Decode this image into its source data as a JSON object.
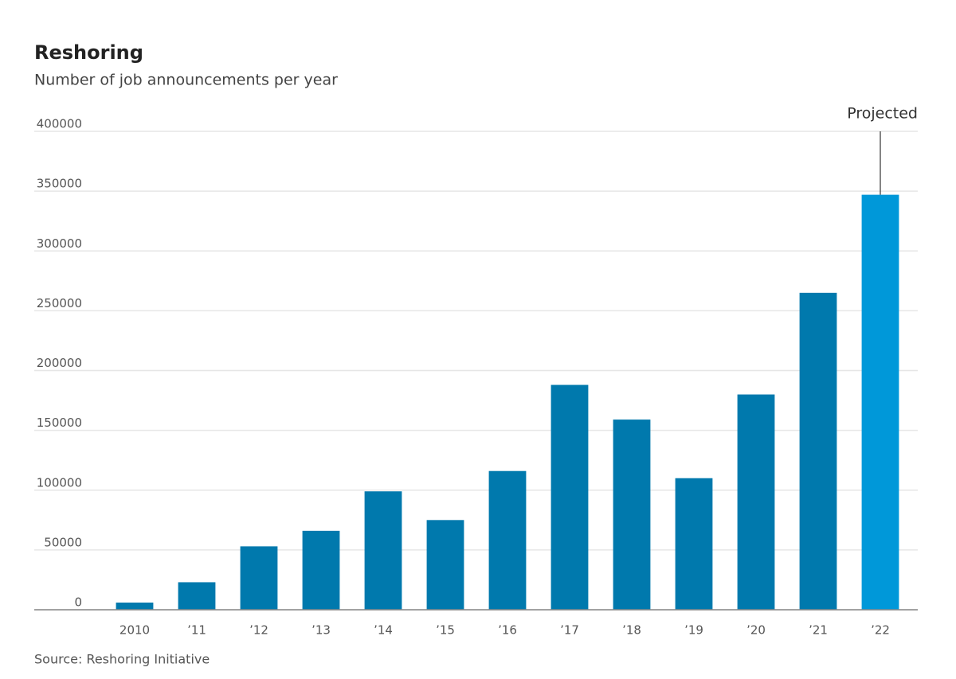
{
  "chart_data": {
    "type": "bar",
    "title": "Reshoring",
    "subtitle": "Number of job announcements per year",
    "source": "Source: Reshoring Initiative",
    "annotation": "Projected",
    "categories": [
      "2010",
      "’11",
      "’12",
      "’13",
      "’14",
      "’15",
      "’16",
      "’17",
      "’18",
      "’19",
      "’20",
      "’21",
      "’22"
    ],
    "values": [
      6000,
      23000,
      53000,
      66000,
      99000,
      75000,
      116000,
      188000,
      159000,
      110000,
      180000,
      265000,
      347000
    ],
    "colors": [
      "#0079ad",
      "#0079ad",
      "#0079ad",
      "#0079ad",
      "#0079ad",
      "#0079ad",
      "#0079ad",
      "#0079ad",
      "#0079ad",
      "#0079ad",
      "#0079ad",
      "#0079ad",
      "#0098d9"
    ],
    "ylim": [
      0,
      400000
    ],
    "yticks": [
      0,
      50000,
      100000,
      150000,
      200000,
      250000,
      300000,
      350000,
      400000
    ],
    "grid": true
  }
}
